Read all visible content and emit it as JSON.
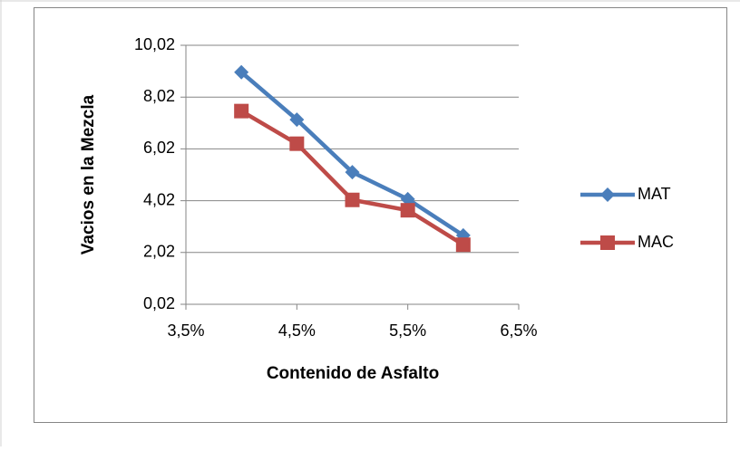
{
  "chart_data": {
    "type": "line",
    "xlabel": "Contenido de Asfalto",
    "ylabel": "Vacios en la Mezcla",
    "x": [
      4.0,
      4.5,
      5.0,
      5.5,
      6.0
    ],
    "series": [
      {
        "name": "MAT",
        "color": "#4a7ebb",
        "marker": "diamond",
        "values": [
          8.98,
          7.15,
          5.12,
          4.08,
          2.68
        ]
      },
      {
        "name": "MAC",
        "color": "#be4b48",
        "marker": "square",
        "values": [
          7.48,
          6.22,
          4.05,
          3.65,
          2.32
        ]
      }
    ],
    "xlim": [
      3.5,
      6.5
    ],
    "xticks": [
      {
        "value": 3.5,
        "label": "3,5%"
      },
      {
        "value": 4.5,
        "label": "4,5%"
      },
      {
        "value": 5.5,
        "label": "5,5%"
      },
      {
        "value": 6.5,
        "label": "6,5%"
      }
    ],
    "ylim": [
      0.02,
      10.02
    ],
    "yticks": [
      {
        "value": 0.02,
        "label": "0,02"
      },
      {
        "value": 2.02,
        "label": "2,02"
      },
      {
        "value": 4.02,
        "label": "4,02"
      },
      {
        "value": 6.02,
        "label": "6,02"
      },
      {
        "value": 8.02,
        "label": "8,02"
      },
      {
        "value": 10.02,
        "label": "10,02"
      }
    ],
    "grid": true,
    "legend": "right"
  }
}
